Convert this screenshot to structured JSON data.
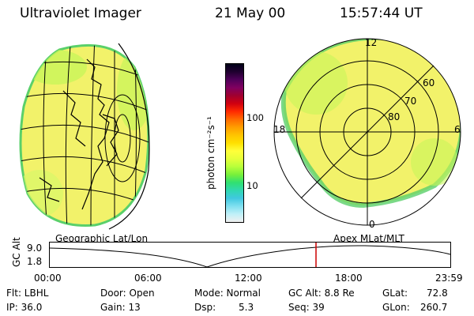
{
  "header": {
    "instrument": "Ultraviolet Imager",
    "date": "21 May 00",
    "time": "15:57:44 UT"
  },
  "colorbar": {
    "label": "photon cm⁻²s⁻¹",
    "ticks": [
      "100",
      "10"
    ],
    "colors": [
      "#000018",
      "#200030",
      "#50005a",
      "#800060",
      "#a00030",
      "#d00010",
      "#ff2a00",
      "#ff6a00",
      "#ff9d00",
      "#ffc400",
      "#ffe000",
      "#ffff3a",
      "#e6ff3a",
      "#b8ff3a",
      "#78f03a",
      "#30e070",
      "#30d8b0",
      "#40c8e0",
      "#80e0f0",
      "#c0f0f8",
      "#f0f0f0"
    ]
  },
  "geo_panel": {
    "title": "Geographic Lat/Lon"
  },
  "polar_panel": {
    "title": "Apex MLat/MLT",
    "mlt_labels": [
      "12",
      "18",
      "6",
      "0"
    ],
    "lat_labels": [
      "60",
      "70",
      "80"
    ]
  },
  "timeline": {
    "axis_label": "GC Alt",
    "y_ticks": [
      "9.0",
      "1.8"
    ],
    "x_ticks": [
      "00:00",
      "06:00",
      "12:00",
      "18:00",
      "23:59"
    ]
  },
  "info": {
    "flt": "Flt: LBHL",
    "ip": "IP: 36.0",
    "door": "Door: Open",
    "gain": "Gain: 13",
    "mode": "Mode: Normal",
    "dsp": "Dsp:",
    "dsp_val": "5.3",
    "gc_alt": "GC Alt: 8.8 Re",
    "seq": "Seq: 39",
    "glat": "GLat:",
    "glat_val": "72.8",
    "glon": "GLon:",
    "glon_val": "260.7"
  },
  "colors": {
    "time_marker": "#cc0000",
    "aurora_yellow": "#f2f26a",
    "aurora_green": "#b8ff3a"
  }
}
